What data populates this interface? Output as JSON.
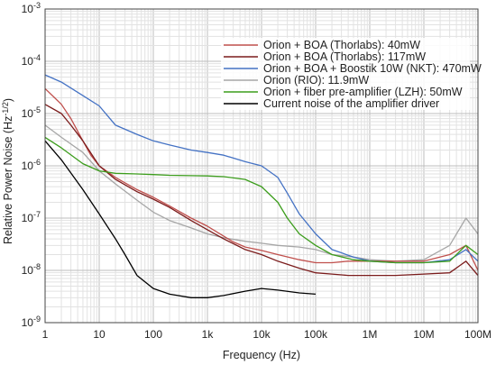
{
  "chart_data": {
    "type": "line",
    "title": "",
    "xlabel": "Frequency (Hz)",
    "ylabel": "Relative Power Noise (Hz",
    "ylabel_exponent": "-1/2",
    "ylabel_close": ")",
    "x_scale": "log",
    "y_scale": "log",
    "xlim": [
      1,
      100000000
    ],
    "ylim": [
      1e-09,
      0.001
    ],
    "grid": true,
    "legend_position": "top-right",
    "x_ticks": [
      {
        "value": 1,
        "label": "1"
      },
      {
        "value": 10,
        "label": "10"
      },
      {
        "value": 100,
        "label": "100"
      },
      {
        "value": 1000,
        "label": "1k"
      },
      {
        "value": 10000,
        "label": "10k"
      },
      {
        "value": 100000,
        "label": "100k"
      },
      {
        "value": 1000000,
        "label": "1M"
      },
      {
        "value": 10000000,
        "label": "10M"
      },
      {
        "value": 100000000,
        "label": "100M"
      }
    ],
    "y_ticks": [
      {
        "value": 1e-09,
        "mantissa": "10",
        "exponent": "-9"
      },
      {
        "value": 1e-08,
        "mantissa": "10",
        "exponent": "-8"
      },
      {
        "value": 1e-07,
        "mantissa": "10",
        "exponent": "-7"
      },
      {
        "value": 1e-06,
        "mantissa": "10",
        "exponent": "-6"
      },
      {
        "value": 1e-05,
        "mantissa": "10",
        "exponent": "-5"
      },
      {
        "value": 0.0001,
        "mantissa": "10",
        "exponent": "-4"
      },
      {
        "value": 0.001,
        "mantissa": "10",
        "exponent": "-3"
      }
    ],
    "series": [
      {
        "name": "Orion + BOA (Thorlabs): 40mW",
        "color": "#c0504d",
        "x": [
          1,
          1.5,
          2,
          3,
          5,
          7,
          10,
          20,
          50,
          100,
          200,
          500,
          1000,
          2000,
          3000,
          5000,
          10000,
          20000,
          50000,
          100000,
          200000,
          400000,
          1000000,
          3000000,
          10000000,
          30000000,
          60000000,
          100000000
        ],
        "y": [
          3e-05,
          2e-05,
          1.5e-05,
          8e-06,
          3e-06,
          1.6e-06,
          1e-06,
          6e-07,
          3.5e-07,
          2.5e-07,
          1.7e-07,
          1e-07,
          7e-08,
          4.5e-08,
          3.5e-08,
          2.8e-08,
          2.4e-08,
          2e-08,
          1.6e-08,
          1.4e-08,
          1.4e-08,
          1.5e-08,
          1.5e-08,
          1.5e-08,
          1.5e-08,
          2e-08,
          3e-08,
          1e-08
        ]
      },
      {
        "name": "Orion + BOA (Thorlabs): 117mW",
        "color": "#7b1c1c",
        "x": [
          1,
          2,
          3,
          5,
          10,
          20,
          50,
          100,
          200,
          500,
          1000,
          2000,
          5000,
          10000,
          20000,
          50000,
          100000,
          200000,
          400000,
          1000000,
          3000000,
          10000000,
          30000000,
          60000000,
          100000000
        ],
        "y": [
          1.5e-05,
          1e-05,
          6e-06,
          3e-06,
          1e-06,
          5.5e-07,
          3.2e-07,
          2.3e-07,
          1.6e-07,
          9e-08,
          6e-08,
          4e-08,
          2.5e-08,
          2e-08,
          1.5e-08,
          1.1e-08,
          9e-09,
          8.5e-09,
          8e-09,
          8e-09,
          8e-09,
          8.5e-09,
          9e-09,
          1.5e-08,
          8e-09
        ]
      },
      {
        "name": "Orion + BOA + Boostik 10W (NKT): 470mW",
        "color": "#4472c4",
        "x": [
          1,
          2,
          5,
          10,
          20,
          50,
          100,
          200,
          500,
          1000,
          2000,
          5000,
          10000,
          20000,
          30000,
          50000,
          100000,
          200000,
          500000,
          1000000,
          3000000,
          10000000,
          30000000,
          60000000,
          100000000
        ],
        "y": [
          5.5e-05,
          4e-05,
          2.2e-05,
          1.4e-05,
          6e-06,
          4e-06,
          3e-06,
          2.5e-06,
          2e-06,
          1.8e-06,
          1.6e-06,
          1.2e-06,
          1e-06,
          6e-07,
          3e-07,
          1.2e-07,
          5e-08,
          2.5e-08,
          1.8e-08,
          1.5e-08,
          1.4e-08,
          1.4e-08,
          1.6e-08,
          2.5e-08,
          1.5e-08
        ]
      },
      {
        "name": "Orion (RIO): 11.9mW",
        "color": "#a6a6a6",
        "x": [
          1,
          2,
          5,
          10,
          20,
          50,
          100,
          200,
          500,
          1000,
          2000,
          5000,
          10000,
          20000,
          50000,
          100000,
          200000,
          500000,
          1000000,
          3000000,
          10000000,
          30000000,
          60000000,
          100000000
        ],
        "y": [
          6e-06,
          3.5e-06,
          1.8e-06,
          8e-07,
          4.5e-07,
          2.2e-07,
          1.3e-07,
          9e-08,
          6.5e-08,
          5e-08,
          4.2e-08,
          3.6e-08,
          3.3e-08,
          3e-08,
          2.8e-08,
          2.5e-08,
          2e-08,
          1.8e-08,
          1.6e-08,
          1.5e-08,
          1.6e-08,
          3e-08,
          1e-07,
          5e-08
        ]
      },
      {
        "name": "Orion + fiber pre-amplifier (LZH): 50mW",
        "color": "#3c9d1c",
        "x": [
          1,
          2,
          5,
          10,
          20,
          50,
          100,
          200,
          500,
          1000,
          2000,
          5000,
          10000,
          20000,
          30000,
          50000,
          100000,
          200000,
          500000,
          1000000,
          3000000,
          10000000,
          30000000,
          60000000,
          100000000
        ],
        "y": [
          3.5e-06,
          2.2e-06,
          1.1e-06,
          8e-07,
          7.2e-07,
          7e-07,
          6.8e-07,
          6.6e-07,
          6.5e-07,
          6.4e-07,
          6.2e-07,
          5.5e-07,
          4e-07,
          2e-07,
          1e-07,
          5e-08,
          3e-08,
          2e-08,
          1.6e-08,
          1.5e-08,
          1.4e-08,
          1.4e-08,
          1.5e-08,
          3e-08,
          2e-08
        ]
      },
      {
        "name": "Current noise of the amplifier driver",
        "color": "#000000",
        "x": [
          1,
          2,
          5,
          10,
          20,
          30,
          50,
          100,
          200,
          500,
          1000,
          2000,
          5000,
          10000,
          20000,
          50000,
          100000
        ],
        "y": [
          3e-06,
          1.3e-06,
          3.5e-07,
          1.2e-07,
          4e-08,
          2e-08,
          8e-09,
          4.5e-09,
          3.5e-09,
          3e-09,
          3e-09,
          3.3e-09,
          4e-09,
          4.5e-09,
          4.2e-09,
          3.7e-09,
          3.5e-09
        ]
      }
    ]
  }
}
